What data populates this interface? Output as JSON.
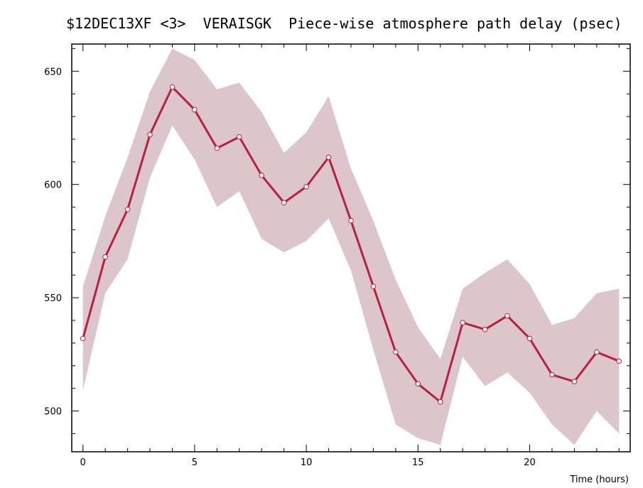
{
  "chart_data": {
    "type": "line",
    "title": "$12DEC13XF <3>  VERAISGK  Piece-wise atmosphere path delay (psec)",
    "xlabel": "Time (hours)",
    "ylabel": "",
    "xlim": [
      -0.5,
      24.5
    ],
    "ylim": [
      482,
      662
    ],
    "xticks": [
      0,
      5,
      10,
      15,
      20
    ],
    "yticks": [
      500,
      550,
      600,
      650
    ],
    "grid": false,
    "colors": {
      "line": "#b8203f",
      "band": "#dcc6cb",
      "marker_fill": "#ffffff"
    },
    "series": [
      {
        "x": [
          0,
          1,
          2,
          3,
          4,
          5,
          6,
          7,
          8,
          9,
          10,
          11,
          12,
          13,
          14,
          15,
          16,
          17,
          18,
          19,
          20,
          21,
          22,
          23,
          24
        ],
        "values": [
          532,
          568,
          589,
          622,
          643,
          633,
          616,
          621,
          604,
          592,
          599,
          612,
          584,
          555,
          526,
          512,
          504,
          539,
          536,
          542,
          532,
          516,
          513,
          526,
          522
        ],
        "upper": [
          555,
          586,
          612,
          641,
          660,
          655,
          642,
          645,
          632,
          614,
          623,
          639,
          607,
          584,
          558,
          537,
          523,
          554,
          561,
          567,
          556,
          538,
          541,
          552,
          554
        ],
        "lower": [
          509,
          552,
          567,
          603,
          626,
          611,
          590,
          597,
          576,
          570,
          575,
          585,
          562,
          527,
          494,
          488,
          485,
          524,
          511,
          517,
          508,
          494,
          485,
          500,
          490
        ]
      }
    ]
  }
}
